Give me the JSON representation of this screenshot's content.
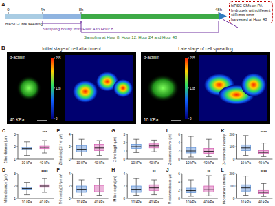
{
  "timeline": {
    "label": "A",
    "ticks": [
      "0",
      "4h",
      "8h",
      "48h"
    ],
    "seeding": "hiPSC-CMs seeding",
    "hourly": "Sampling hourly from Hour 4 to Hour 8",
    "sampling": "Sampling at Hour 8, Hour 12, Hour 24 and Hour 48",
    "harvest": "hiPSC-CMs on PA hydrogels with different stiffness were harvested at Hour 48"
  },
  "images": {
    "label": "B",
    "stain": "α-actinin",
    "colorbar_ticks": [
      0,
      128,
      255
    ],
    "panels": [
      {
        "title": "Initial stage of cell attachment",
        "stiffness": "40 KPa"
      },
      {
        "title": "Late stage of cell spreading",
        "stiffness": "10 KPa"
      }
    ]
  },
  "chart_data": [
    {
      "type": "box",
      "label": "C",
      "ylabel": "Z-line distance (μm)",
      "categories": [
        "10 kPa",
        "40 kPa"
      ],
      "colors": [
        "#5b8fd6",
        "#d45bb0"
      ],
      "ylim": [
        1,
        3
      ],
      "yticks": [
        1,
        2,
        3
      ],
      "boxes": [
        {
          "min": 1.3,
          "q1": 1.75,
          "median": 1.85,
          "q3": 1.95,
          "max": 2.4
        },
        {
          "min": 1.5,
          "q1": 1.85,
          "median": 1.95,
          "q3": 2.05,
          "max": 2.5
        }
      ],
      "annotation": "***"
    },
    {
      "type": "box",
      "label": "D",
      "ylabel": "M-line distance (μm)",
      "categories": [
        "10 kPa",
        "40 kPa"
      ],
      "colors": [
        "#5b8fd6",
        "#d45bb0"
      ],
      "ylim": [
        1,
        3
      ],
      "yticks": [
        1,
        2,
        3
      ],
      "boxes": [
        {
          "min": 1.3,
          "q1": 1.7,
          "median": 1.8,
          "q3": 1.9,
          "max": 2.3
        },
        {
          "min": 1.5,
          "q1": 1.9,
          "median": 2.0,
          "q3": 2.1,
          "max": 2.6
        }
      ],
      "annotation": "****"
    },
    {
      "type": "box",
      "label": "E",
      "ylabel": "Z-line density (10⁻² per μm²)",
      "categories": [
        "10 kPa",
        "40 kPa"
      ],
      "colors": [
        "#5b8fd6",
        "#d45bb0"
      ],
      "ylim": [
        0,
        4
      ],
      "yticks": [
        0,
        2,
        4
      ],
      "boxes": [
        {
          "min": 0.5,
          "q1": 1.2,
          "median": 1.6,
          "q3": 2.2,
          "max": 3.2
        },
        {
          "min": 0.6,
          "q1": 1.4,
          "median": 1.8,
          "q3": 2.4,
          "max": 3.0
        }
      ]
    },
    {
      "type": "box",
      "label": "F",
      "ylabel": "M-line density (10⁻² per μm²)",
      "categories": [
        "10 kPa",
        "40 kPa"
      ],
      "colors": [
        "#5b8fd6",
        "#d45bb0"
      ],
      "ylim": [
        0,
        4
      ],
      "yticks": [
        0,
        2,
        4
      ],
      "boxes": [
        {
          "min": 0.4,
          "q1": 1.0,
          "median": 1.4,
          "q3": 2.0,
          "max": 3.0
        },
        {
          "min": 0.5,
          "q1": 1.1,
          "median": 1.5,
          "q3": 2.1,
          "max": 3.2
        }
      ]
    },
    {
      "type": "box",
      "label": "G",
      "ylabel": "Z-line length (μm)",
      "categories": [
        "10 kPa",
        "40 kPa"
      ],
      "colors": [
        "#5b8fd6",
        "#d45bb0"
      ],
      "ylim": [
        0,
        3
      ],
      "yticks": [
        0,
        1,
        2,
        3
      ],
      "boxes": [
        {
          "min": 0.8,
          "q1": 1.3,
          "median": 1.5,
          "q3": 1.8,
          "max": 2.4
        },
        {
          "min": 0.9,
          "q1": 1.35,
          "median": 1.6,
          "q3": 1.85,
          "max": 2.3
        }
      ]
    },
    {
      "type": "box",
      "label": "H",
      "ylabel": "M-line length (μm)",
      "categories": [
        "10 kPa",
        "40 kPa"
      ],
      "colors": [
        "#5b8fd6",
        "#d45bb0"
      ],
      "ylim": [
        0,
        4
      ],
      "yticks": [
        0,
        2,
        4
      ],
      "boxes": [
        {
          "min": 0.5,
          "q1": 1.0,
          "median": 1.4,
          "q3": 2.0,
          "max": 3.2
        },
        {
          "min": 0.6,
          "q1": 1.3,
          "median": 1.7,
          "q3": 2.2,
          "max": 3.0
        }
      ],
      "annotation": "**"
    },
    {
      "type": "box",
      "label": "I",
      "ylabel": "Z-costamere distance (μm)",
      "categories": [
        "10 kPa",
        "40 kPa"
      ],
      "colors": [
        "#5b8fd6",
        "#d45bb0"
      ],
      "ylim": [
        0,
        6
      ],
      "yticks": [
        0,
        2,
        4,
        6
      ],
      "boxes": [
        {
          "min": 0.5,
          "q1": 1.5,
          "median": 2.0,
          "q3": 2.8,
          "max": 5.5
        },
        {
          "min": 0.6,
          "q1": 1.4,
          "median": 1.9,
          "q3": 2.6,
          "max": 4.8
        }
      ]
    },
    {
      "type": "box",
      "label": "J",
      "ylabel": "M-costamere distance (μm)",
      "categories": [
        "10 kPa",
        "40 kPa"
      ],
      "colors": [
        "#5b8fd6",
        "#d45bb0"
      ],
      "ylim": [
        0,
        6
      ],
      "yticks": [
        0,
        2,
        4,
        6
      ],
      "boxes": [
        {
          "min": 0.5,
          "q1": 1.4,
          "median": 1.9,
          "q3": 2.5,
          "max": 4.5
        },
        {
          "min": 0.6,
          "q1": 1.6,
          "median": 2.2,
          "q3": 3.0,
          "max": 5.5
        }
      ],
      "annotation": "**"
    },
    {
      "type": "box",
      "label": "K",
      "ylabel": "Z-costamere intensity",
      "categories": [
        "10 kPa",
        "40 kPa"
      ],
      "colors": [
        "#5b8fd6",
        "#d45bb0"
      ],
      "ylim": [
        0,
        200
      ],
      "yticks": [
        0,
        100,
        200
      ],
      "boxes": [
        {
          "min": 30,
          "q1": 70,
          "median": 90,
          "q3": 115,
          "max": 190
        },
        {
          "min": 20,
          "q1": 45,
          "median": 55,
          "q3": 70,
          "max": 130
        }
      ],
      "annotation": "****"
    },
    {
      "type": "box",
      "label": "L",
      "ylabel": "M-costamere intensity",
      "categories": [
        "10 kPa",
        "40 kPa"
      ],
      "colors": [
        "#5b8fd6",
        "#d45bb0"
      ],
      "ylim": [
        0,
        200
      ],
      "yticks": [
        0,
        100,
        200
      ],
      "boxes": [
        {
          "min": 25,
          "q1": 60,
          "median": 85,
          "q3": 110,
          "max": 180
        },
        {
          "min": 15,
          "q1": 40,
          "median": 50,
          "q3": 65,
          "max": 120
        }
      ],
      "annotation": "****"
    }
  ]
}
